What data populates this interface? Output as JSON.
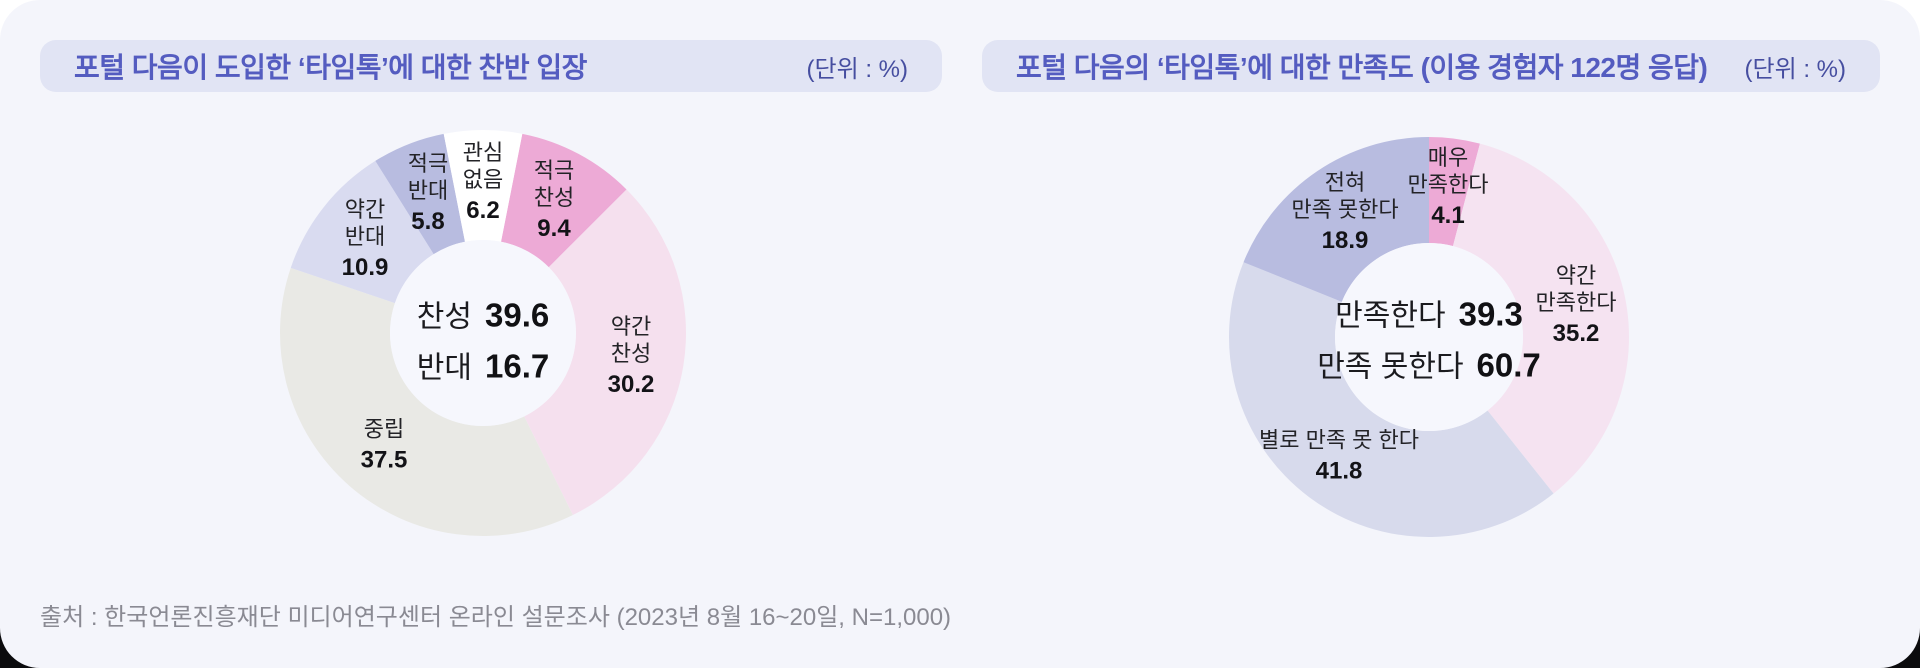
{
  "colors": {
    "card_bg": "#F4F5FB",
    "header_bg": "#E1E4F4",
    "title_text": "#545CC0",
    "unit_text": "#464EA0",
    "footer_text": "#8A8A93",
    "donut_hole": "#F6F7FD",
    "accent_pink": "#EDAAD6",
    "accent_light_pink": "#F5E0EE",
    "accent_gray": "#E9E9E5",
    "accent_lavender": "#D9DBF0",
    "accent_periwinkle": "#B8BCE0"
  },
  "chart_data": [
    {
      "type": "donut",
      "title": "포털 다음이 도입한 ‘타임톡’에 대한 찬반 입장",
      "unit_label": "(단위 : %)",
      "legend_position": "in-segment",
      "segments": [
        {
          "label": "적극 찬성",
          "label_lines": [
            "적극",
            "찬성"
          ],
          "value": 9.4,
          "color": "#EDAAD6"
        },
        {
          "label": "약간 찬성",
          "label_lines": [
            "약간",
            "찬성"
          ],
          "value": 30.2,
          "color": "#F5E0EE"
        },
        {
          "label": "중립",
          "label_lines": [
            "중립"
          ],
          "value": 37.5,
          "color": "#E9E9E5"
        },
        {
          "label": "약간 반대",
          "label_lines": [
            "약간",
            "반대"
          ],
          "value": 10.9,
          "color": "#D9DBF0"
        },
        {
          "label": "적극 반대",
          "label_lines": [
            "적극",
            "반대"
          ],
          "value": 5.8,
          "color": "#B8BCE0"
        },
        {
          "label": "관심 없음",
          "label_lines": [
            "관심",
            "없음"
          ],
          "value": 6.2,
          "color": "#FFFFFF"
        }
      ],
      "center": [
        {
          "label": "찬성",
          "value": "39.6"
        },
        {
          "label": "반대",
          "value": "16.7"
        }
      ]
    },
    {
      "type": "donut",
      "title": "포털 다음의 ‘타임톡’에 대한 만족도 (이용 경험자 122명 응답)",
      "unit_label": "(단위 : %)",
      "legend_position": "in-segment",
      "segments": [
        {
          "label": "매우 만족한다",
          "label_lines": [
            "매우",
            "만족한다"
          ],
          "value": 4.1,
          "color": "#EDAAD6"
        },
        {
          "label": "약간 만족한다",
          "label_lines": [
            "약간",
            "만족한다"
          ],
          "value": 35.2,
          "color": "#F5E3F1"
        },
        {
          "label": "별로 만족 못 한다",
          "label_lines": [
            "별로 만족 못 한다"
          ],
          "value": 41.8,
          "color": "#D7DAEC"
        },
        {
          "label": "전혀 만족 못한다",
          "label_lines": [
            "전혀",
            "만족 못한다"
          ],
          "value": 18.9,
          "color": "#B8BCE0"
        }
      ],
      "center": [
        {
          "label": "만족한다",
          "value": "39.3"
        },
        {
          "label": "만족 못한다",
          "value": "60.7"
        }
      ]
    }
  ],
  "footer": {
    "source": "출처 : 한국언론진흥재단 미디어연구센터 온라인 설문조사 (2023년 8월 16~20일, N=1,000)"
  }
}
